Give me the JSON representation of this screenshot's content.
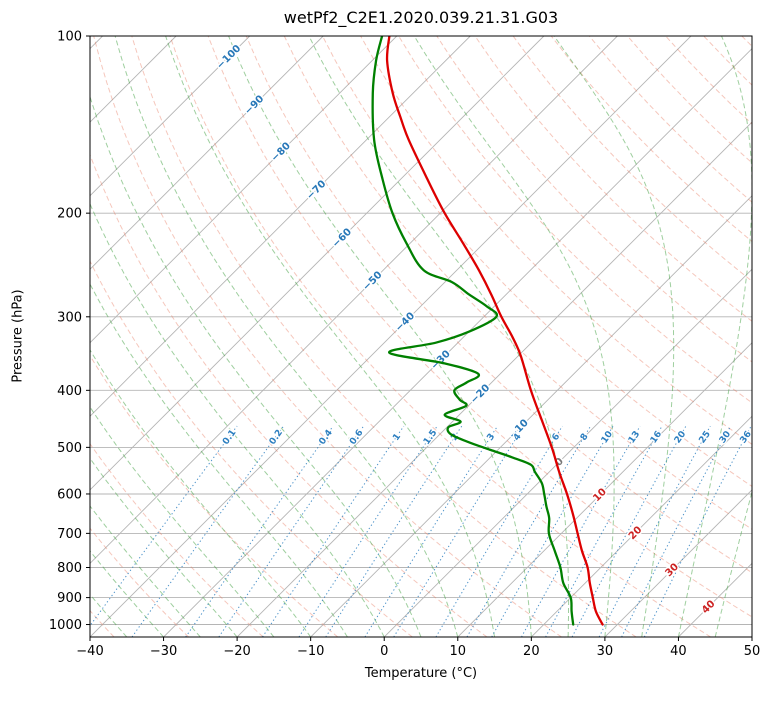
{
  "title": "wetPf2_C2E1.2020.039.21.31.G03",
  "chart_data": {
    "type": "line",
    "chart_kind": "skew-t-log-p-sounding",
    "title": "wetPf2_C2E1.2020.039.21.31.G03",
    "xlabel": "Temperature (°C)",
    "ylabel": "Pressure (hPa)",
    "xlim": [
      -40,
      50
    ],
    "ylim_bottom": 1050,
    "ylim_top": 100,
    "skew_degrees": 45,
    "grid": true,
    "x_ticks": [
      -40,
      -30,
      -20,
      -10,
      0,
      10,
      20,
      30,
      40,
      50
    ],
    "y_ticks": [
      100,
      200,
      300,
      400,
      500,
      600,
      700,
      800,
      900,
      1000
    ],
    "series": [
      {
        "name": "temperature",
        "color": "#dd0000",
        "pressure_hpa": [
          1000,
          950,
          900,
          850,
          800,
          750,
          700,
          650,
          600,
          550,
          500,
          450,
          400,
          350,
          325,
          300,
          275,
          250,
          225,
          200,
          175,
          150,
          137,
          125,
          110,
          100
        ],
        "values_c": [
          28,
          25.3,
          23,
          20.6,
          18.2,
          15.2,
          12.2,
          9,
          5.4,
          1.3,
          -3,
          -8,
          -13.6,
          -19.6,
          -23.3,
          -27.6,
          -32,
          -37,
          -42.8,
          -49.4,
          -56.4,
          -64.3,
          -68.6,
          -72.8,
          -78,
          -81
        ]
      },
      {
        "name": "dewpoint",
        "color": "#008000",
        "pressure_hpa": [
          1000,
          950,
          900,
          850,
          800,
          750,
          700,
          660,
          630,
          600,
          575,
          550,
          535,
          520,
          505,
          490,
          475,
          462,
          452,
          440,
          425,
          415,
          400,
          388,
          375,
          360,
          345,
          332,
          318,
          300,
          288,
          275,
          262,
          250,
          225,
          200,
          175,
          150,
          125,
          110,
          100
        ],
        "values_c": [
          24,
          22,
          20,
          17,
          14.5,
          11.5,
          8.3,
          6.3,
          4.3,
          2.3,
          0.5,
          -2,
          -3.5,
          -7,
          -11,
          -15,
          -18.5,
          -19.8,
          -18.9,
          -22,
          -20.3,
          -22,
          -24,
          -23.4,
          -23,
          -29,
          -38,
          -33,
          -30,
          -28.3,
          -31,
          -35,
          -39,
          -44.5,
          -50.5,
          -56.5,
          -62.5,
          -69,
          -75.5,
          -79.5,
          -82
        ]
      }
    ],
    "isotherms": {
      "start": -130,
      "end": 50,
      "step": 10,
      "color": "#b5b5b5",
      "labels": [
        -100,
        -90,
        -80,
        -70,
        -60,
        -50,
        -40,
        -30,
        -20,
        -10,
        0,
        10,
        20,
        30,
        40
      ],
      "label_color_negative": "#2878b8",
      "label_color_zero": "#777777",
      "label_color_positive": "#cc2222"
    },
    "dry_adiabats": {
      "start": -40,
      "end": 200,
      "step": 10,
      "color": "#e8795f"
    },
    "moist_adiabats": {
      "start": -40,
      "end": 45,
      "step": 5,
      "color": "#3fa03f"
    },
    "mixing_ratio_lines": {
      "values": [
        0.1,
        0.2,
        0.4,
        0.6,
        1,
        1.5,
        2,
        3,
        4,
        6,
        8,
        10,
        13,
        16,
        20,
        25,
        30,
        36
      ],
      "color": "#2d7fc0",
      "label_pressure_hpa": 480,
      "top_pressure_hpa": 460
    }
  }
}
